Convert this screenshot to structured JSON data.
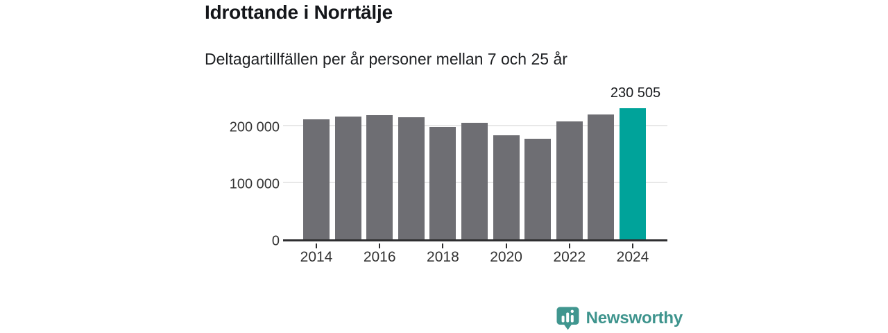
{
  "header": {
    "title": "Idrottande i Norrtälje",
    "subtitle": "Deltagartillfällen per år personer mellan 7 och 25 år"
  },
  "chart_data": {
    "type": "bar",
    "categories": [
      2014,
      2015,
      2016,
      2017,
      2018,
      2019,
      2020,
      2021,
      2022,
      2023,
      2024
    ],
    "values": [
      211000,
      216000,
      218500,
      215000,
      198500,
      206000,
      183000,
      177500,
      207500,
      220000,
      230505
    ],
    "highlight_index": 10,
    "highlight_value_label": "230 505",
    "xticks": [
      2014,
      2016,
      2018,
      2020,
      2022,
      2024
    ],
    "yticks": [
      {
        "value": 0,
        "label": "0"
      },
      {
        "value": 100000,
        "label": "100 000"
      },
      {
        "value": 200000,
        "label": "200 000"
      }
    ],
    "ylim": [
      0,
      260000
    ],
    "xlabel": "",
    "ylabel": "",
    "grid": "horizontal",
    "legend": "none",
    "colors": {
      "bar": "#6e6e73",
      "highlight": "#00a39a",
      "grid": "#e8e8e8",
      "axis": "#2e2e30"
    }
  },
  "footer": {
    "brand": "Newsworthy",
    "brand_color": "#3e948d",
    "logo_icon": "newsworthy-speech-bubble-bar-chart-icon"
  }
}
